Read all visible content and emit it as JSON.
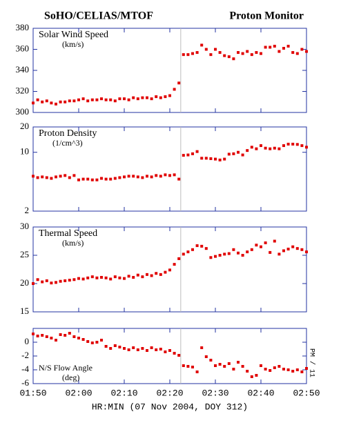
{
  "header": {
    "left": "SoHO/CELIAS/MTOF",
    "right": "Proton Monitor"
  },
  "chart_data": [
    {
      "type": "scatter",
      "title": "Solar Wind Speed",
      "units": "(km/s)",
      "color": "#e00000",
      "log": false,
      "xlim": [
        110,
        170
      ],
      "ylim": [
        300,
        380
      ],
      "yticks": [
        300,
        320,
        340,
        360,
        380
      ],
      "vline": 142.4,
      "x": [
        110,
        111,
        112,
        113,
        114,
        115,
        116,
        117,
        118,
        119,
        120,
        121,
        122,
        123,
        124,
        125,
        126,
        127,
        128,
        129,
        130,
        131,
        132,
        133,
        134,
        135,
        136,
        137,
        138,
        139,
        140,
        141,
        142,
        143,
        144,
        145,
        146,
        147,
        148,
        149,
        150,
        151,
        152,
        153,
        154,
        155,
        156,
        157,
        158,
        159,
        160,
        161,
        162,
        163,
        164,
        165,
        166,
        167,
        168,
        169,
        170
      ],
      "values": [
        309,
        312,
        310,
        311,
        309,
        308,
        310,
        310,
        311,
        311,
        312,
        313,
        311,
        312,
        312,
        313,
        312,
        312,
        311,
        313,
        313,
        312,
        314,
        313,
        314,
        314,
        313,
        315,
        314,
        315,
        316,
        322,
        328,
        355,
        355,
        356,
        357,
        364,
        360,
        355,
        360,
        357,
        354,
        353,
        351,
        357,
        356,
        358,
        355,
        357,
        356,
        362,
        362,
        363,
        358,
        361,
        363,
        357,
        356,
        360,
        358
      ]
    },
    {
      "type": "scatter",
      "title": "Proton Density",
      "units": "(1/cm^3)",
      "color": "#e00000",
      "log": true,
      "xlim": [
        110,
        170
      ],
      "ylim": [
        2,
        20
      ],
      "yticks": [
        2,
        10,
        20
      ],
      "vline": 142.4,
      "x": [
        110,
        111,
        112,
        113,
        114,
        115,
        116,
        117,
        118,
        119,
        120,
        121,
        122,
        123,
        124,
        125,
        126,
        127,
        128,
        129,
        130,
        131,
        132,
        133,
        134,
        135,
        136,
        137,
        138,
        139,
        140,
        141,
        142,
        143,
        144,
        145,
        146,
        147,
        148,
        149,
        150,
        151,
        152,
        153,
        154,
        155,
        156,
        157,
        158,
        159,
        160,
        161,
        162,
        163,
        164,
        165,
        166,
        167,
        168,
        169,
        170
      ],
      "values": [
        5.2,
        5.0,
        5.1,
        5.0,
        4.9,
        5.1,
        5.2,
        5.3,
        5.0,
        5.3,
        4.7,
        4.8,
        4.8,
        4.7,
        4.7,
        4.9,
        4.8,
        4.8,
        4.9,
        5.0,
        5.1,
        5.2,
        5.2,
        5.1,
        5.0,
        5.2,
        5.1,
        5.3,
        5.2,
        5.4,
        5.3,
        5.4,
        4.8,
        9.2,
        9.3,
        9.6,
        10.2,
        8.5,
        8.5,
        8.4,
        8.3,
        8.1,
        8.3,
        9.5,
        9.6,
        10.0,
        9.3,
        10.5,
        11.5,
        11.0,
        12.0,
        11.2,
        11.0,
        11.2,
        11.0,
        12.0,
        12.5,
        12.5,
        12.4,
        12.0,
        11.5
      ]
    },
    {
      "type": "scatter",
      "title": "Thermal Speed",
      "units": "(km/s)",
      "color": "#e00000",
      "log": false,
      "xlim": [
        110,
        170
      ],
      "ylim": [
        15,
        30
      ],
      "yticks": [
        15,
        20,
        25,
        30
      ],
      "vline": 142.4,
      "x": [
        110,
        111,
        112,
        113,
        114,
        115,
        116,
        117,
        118,
        119,
        120,
        121,
        122,
        123,
        124,
        125,
        126,
        127,
        128,
        129,
        130,
        131,
        132,
        133,
        134,
        135,
        136,
        137,
        138,
        139,
        140,
        141,
        142,
        143,
        144,
        145,
        146,
        147,
        148,
        149,
        150,
        151,
        152,
        153,
        154,
        155,
        156,
        157,
        158,
        159,
        160,
        161,
        162,
        163,
        164,
        165,
        166,
        167,
        168,
        169,
        170
      ],
      "values": [
        20.0,
        20.7,
        20.3,
        20.5,
        20.1,
        20.2,
        20.4,
        20.5,
        20.6,
        20.7,
        20.9,
        20.8,
        21.0,
        21.2,
        21.0,
        21.1,
        21.0,
        20.8,
        21.2,
        21.0,
        20.9,
        21.3,
        21.1,
        21.5,
        21.2,
        21.6,
        21.4,
        21.8,
        21.6,
        22.0,
        22.4,
        23.4,
        24.4,
        25.2,
        25.6,
        26.0,
        26.7,
        26.6,
        26.2,
        24.6,
        24.8,
        25.0,
        25.2,
        25.3,
        26.0,
        25.4,
        25.0,
        25.6,
        26.0,
        26.8,
        26.5,
        27.2,
        25.5,
        27.5,
        25.2,
        25.8,
        26.1,
        26.5,
        26.2,
        26.0,
        25.6
      ]
    },
    {
      "type": "scatter",
      "title": "N/S Flow Angle",
      "units": "(deg)",
      "color": "#e00000",
      "log": false,
      "xlim": [
        110,
        170
      ],
      "ylim": [
        -6,
        2
      ],
      "yticks": [
        -6,
        -4,
        -2,
        0
      ],
      "vline": 142.4,
      "side_label": "PM / 11",
      "xlabel": "HR:MIN (07 Nov 2004, DOY 312)",
      "xticks": [
        {
          "value": 110,
          "label": "01:50"
        },
        {
          "value": 120,
          "label": "02:00"
        },
        {
          "value": 130,
          "label": "02:10"
        },
        {
          "value": 140,
          "label": "02:20"
        },
        {
          "value": 150,
          "label": "02:30"
        },
        {
          "value": 160,
          "label": "02:40"
        },
        {
          "value": 170,
          "label": "02:50"
        }
      ],
      "x": [
        110,
        111,
        112,
        113,
        114,
        115,
        116,
        117,
        118,
        119,
        120,
        121,
        122,
        123,
        124,
        125,
        126,
        127,
        128,
        129,
        130,
        131,
        132,
        133,
        134,
        135,
        136,
        137,
        138,
        139,
        140,
        141,
        142,
        143,
        144,
        145,
        146,
        147,
        148,
        149,
        150,
        151,
        152,
        153,
        154,
        155,
        156,
        157,
        158,
        159,
        160,
        161,
        162,
        163,
        164,
        165,
        166,
        167,
        168,
        169,
        170
      ],
      "values": [
        1.2,
        0.9,
        1.0,
        0.8,
        0.6,
        0.3,
        1.1,
        1.0,
        1.3,
        0.8,
        0.6,
        0.4,
        0.1,
        -0.1,
        0.0,
        0.3,
        -0.6,
        -0.9,
        -0.5,
        -0.7,
        -0.9,
        -1.1,
        -0.8,
        -1.1,
        -0.9,
        -1.2,
        -0.8,
        -1.1,
        -1.0,
        -1.4,
        -1.2,
        -1.6,
        -1.9,
        -3.4,
        -3.5,
        -3.6,
        -4.3,
        -0.8,
        -2.1,
        -2.6,
        -3.4,
        -3.2,
        -3.5,
        -3.1,
        -3.9,
        -2.9,
        -3.5,
        -4.2,
        -5.0,
        -4.8,
        -3.4,
        -3.9,
        -4.1,
        -3.7,
        -3.5,
        -3.9,
        -4.0,
        -4.2,
        -4.0,
        -4.3,
        -3.8
      ]
    }
  ]
}
